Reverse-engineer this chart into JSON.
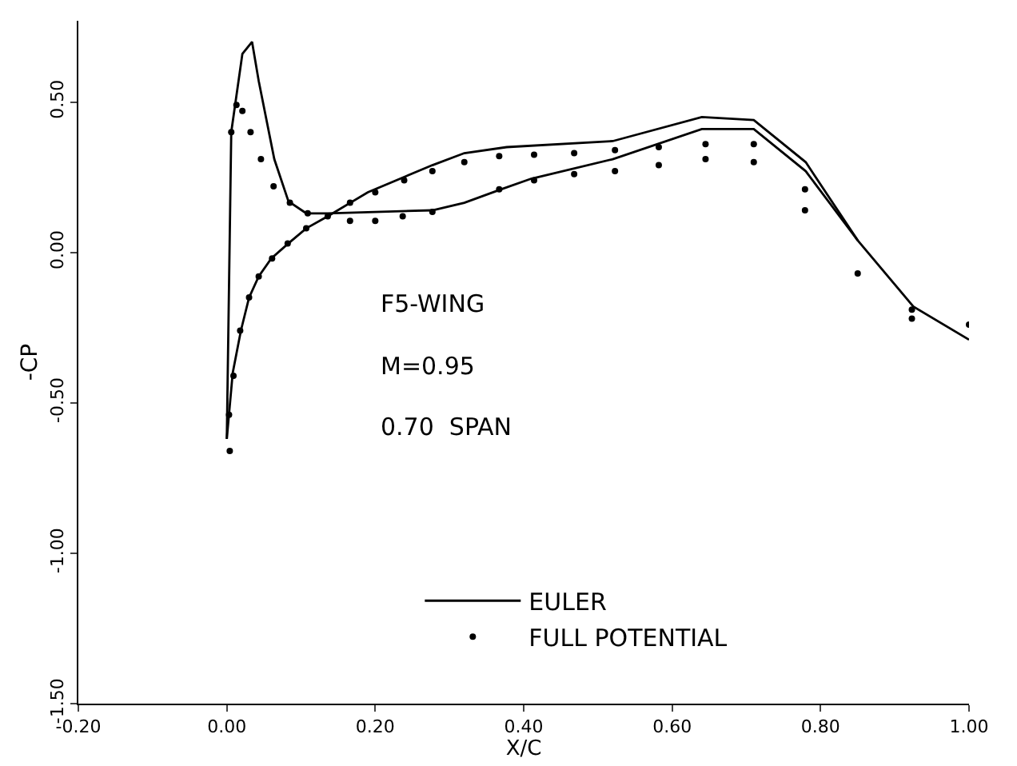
{
  "chart_data": {
    "type": "line",
    "xlabel": "X/C",
    "ylabel": "-CP",
    "xlim": [
      -0.2,
      1.0
    ],
    "xticks": [
      {
        "value": -0.2,
        "label": "-0.20"
      },
      {
        "value": 0,
        "label": "0.00"
      },
      {
        "value": 0.2,
        "label": "0.20"
      },
      {
        "value": 0.4,
        "label": "0.40"
      },
      {
        "value": 0.6,
        "label": "0.60"
      },
      {
        "value": 0.8,
        "label": "0.80"
      },
      {
        "value": 1.0,
        "label": "1.00"
      }
    ],
    "ylim": [
      -1.5,
      0.77
    ],
    "yticks": [
      {
        "value": -1.5,
        "label": "-1.50"
      },
      {
        "value": -1.0,
        "label": "-1.00"
      },
      {
        "value": -0.5,
        "label": "-0.50"
      },
      {
        "value": 0,
        "label": "0.00"
      },
      {
        "value": 0.5,
        "label": "0.50"
      }
    ],
    "grid": false,
    "legend": "bottom",
    "annotations": [
      "F5-WING",
      "M=0.95",
      "0.70  SPAN"
    ],
    "series": [
      {
        "name": "EULER",
        "color": "#000000",
        "marker": "none",
        "line_style": "solid",
        "x": [
          0,
          0.006,
          0.021,
          0.034,
          0.043,
          0.064,
          0.083,
          0.107,
          0.136,
          0.277,
          0.32,
          0.37,
          0.41,
          0.52,
          0.64,
          0.71,
          0.78,
          0.85,
          0.925,
          1.0
        ],
        "values": [
          -0.62,
          0.4,
          0.66,
          0.7,
          0.57,
          0.31,
          0.17,
          0.13,
          0.13,
          0.14,
          0.165,
          0.21,
          0.245,
          0.31,
          0.41,
          0.41,
          0.27,
          0.04,
          -0.18,
          -0.29
        ]
      },
      {
        "color": "#000000",
        "marker": "none",
        "line_style": "solid",
        "x": [
          0,
          0.008,
          0.019,
          0.03,
          0.043,
          0.06,
          0.083,
          0.107,
          0.136,
          0.19,
          0.277,
          0.32,
          0.377,
          0.52,
          0.64,
          0.71,
          0.78,
          0.85
        ],
        "values": [
          -0.62,
          -0.4,
          -0.26,
          -0.15,
          -0.08,
          -0.02,
          0.03,
          0.08,
          0.12,
          0.2,
          0.29,
          0.33,
          0.35,
          0.37,
          0.45,
          0.44,
          0.3,
          0.04
        ]
      },
      {
        "name": "FULL POTENTIAL",
        "type": "scatter",
        "color": "#000000",
        "marker": "circle",
        "x": [
          0.004,
          0.003,
          0.009,
          0.018,
          0.03,
          0.043,
          0.061,
          0.082,
          0.107,
          0.006,
          0.013,
          0.021,
          0.032,
          0.046,
          0.063,
          0.085,
          0.109,
          0.136,
          0.166,
          0.2,
          0.237,
          0.277,
          0.166,
          0.2,
          0.239,
          0.277,
          0.32,
          0.367,
          0.367,
          0.414,
          0.414,
          0.468,
          0.468,
          0.523,
          0.523,
          0.582,
          0.582,
          0.645,
          0.645,
          0.71,
          0.71,
          0.779,
          0.779,
          0.85,
          0.923,
          0.923,
          1.0
        ],
        "values": [
          -0.66,
          -0.54,
          -0.41,
          -0.26,
          -0.15,
          -0.08,
          -0.02,
          0.03,
          0.08,
          0.4,
          0.49,
          0.47,
          0.4,
          0.31,
          0.22,
          0.165,
          0.13,
          0.12,
          0.105,
          0.105,
          0.12,
          0.135,
          0.165,
          0.2,
          0.24,
          0.27,
          0.3,
          0.32,
          0.21,
          0.325,
          0.24,
          0.33,
          0.26,
          0.34,
          0.27,
          0.35,
          0.29,
          0.36,
          0.31,
          0.36,
          0.3,
          0.21,
          0.14,
          -0.07,
          -0.19,
          -0.22,
          -0.24
        ]
      }
    ]
  }
}
